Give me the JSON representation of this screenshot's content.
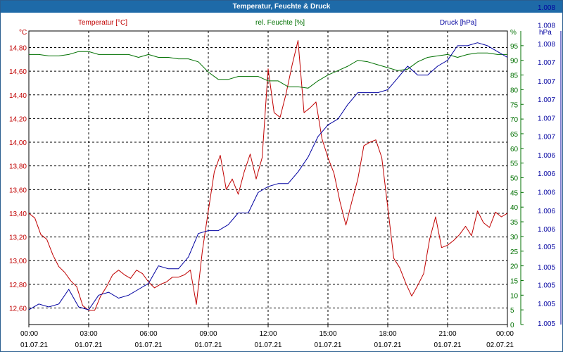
{
  "window": {
    "title": "Temperatur, Feuchte & Druck"
  },
  "chart_data": {
    "type": "line",
    "title": "Temperatur, Feuchte & Druck",
    "x_start_label": "00:00",
    "x_ticks": [
      {
        "time": "00:00",
        "date": "01.07.21"
      },
      {
        "time": "03:00",
        "date": "01.07.21"
      },
      {
        "time": "06:00",
        "date": "01.07.21"
      },
      {
        "time": "09:00",
        "date": "01.07.21"
      },
      {
        "time": "12:00",
        "date": "01.07.21"
      },
      {
        "time": "15:00",
        "date": "01.07.21"
      },
      {
        "time": "18:00",
        "date": "01.07.21"
      },
      {
        "time": "21:00",
        "date": "01.07.21"
      },
      {
        "time": "00:00",
        "date": "02.07.21"
      }
    ],
    "xlim": [
      0,
      24
    ],
    "axes": {
      "left": {
        "title": "Temperatur [°C]",
        "unit": "°C",
        "color": "#c00000",
        "ylim": [
          12.46,
          14.94
        ],
        "ticks": [
          "12,60",
          "12,80",
          "13,00",
          "13,20",
          "13,40",
          "13,60",
          "13,80",
          "14,00",
          "14,20",
          "14,40",
          "14,60",
          "14,80"
        ],
        "tick_values": [
          12.6,
          12.8,
          13.0,
          13.2,
          13.4,
          13.6,
          13.8,
          14.0,
          14.2,
          14.4,
          14.6,
          14.8
        ]
      },
      "right1": {
        "title": "rel. Feuchte [%]",
        "unit": "%",
        "color": "#007000",
        "ylim": [
          0,
          100
        ],
        "ticks": [
          "0",
          "5",
          "10",
          "15",
          "20",
          "25",
          "30",
          "35",
          "40",
          "45",
          "50",
          "55",
          "60",
          "65",
          "70",
          "75",
          "80",
          "85",
          "90",
          "95"
        ],
        "tick_values": [
          0,
          5,
          10,
          15,
          20,
          25,
          30,
          35,
          40,
          45,
          50,
          55,
          60,
          65,
          70,
          75,
          80,
          85,
          90,
          95
        ]
      },
      "right2": {
        "title": "Druck [hPa]",
        "unit": "hPa",
        "color": "#0000a0",
        "ylim": [
          0,
          100
        ],
        "ticks": [
          "1.005",
          "1.005",
          "1.005",
          "1.005",
          "1.005",
          "1.006",
          "1.006",
          "1.006",
          "1.006",
          "1.006",
          "1.007",
          "1.007",
          "1.007",
          "1.007",
          "1.007",
          "1.008",
          "1.008",
          "1.008"
        ],
        "tick_positions": [
          0.5,
          7.2,
          13.6,
          19.7,
          26.6,
          32.6,
          38.9,
          45.2,
          51.5,
          57.8,
          64.1,
          70.4,
          76.7,
          83.0,
          89.4,
          95.7,
          102.0,
          108.2
        ]
      }
    },
    "series": [
      {
        "name": "Temperatur",
        "axis": "left",
        "color": "#c00000",
        "x": [
          0,
          0.3,
          0.6,
          0.9,
          1.2,
          1.5,
          1.8,
          2.1,
          2.4,
          2.7,
          3.0,
          3.3,
          3.6,
          3.9,
          4.2,
          4.5,
          4.8,
          5.1,
          5.4,
          5.7,
          6.0,
          6.3,
          6.6,
          6.9,
          7.2,
          7.5,
          7.8,
          8.1,
          8.4,
          8.7,
          9.0,
          9.3,
          9.6,
          9.9,
          10.2,
          10.5,
          10.8,
          11.1,
          11.4,
          11.7,
          12.0,
          12.3,
          12.6,
          12.9,
          13.2,
          13.5,
          13.8,
          14.1,
          14.4,
          14.7,
          15.0,
          15.3,
          15.6,
          15.9,
          16.2,
          16.5,
          16.8,
          17.1,
          17.4,
          17.7,
          18.0,
          18.3,
          18.6,
          18.9,
          19.2,
          19.5,
          19.8,
          20.1,
          20.4,
          20.7,
          21.0,
          21.3,
          21.6,
          21.9,
          22.2,
          22.5,
          22.8,
          23.1,
          23.4,
          23.7,
          24.0
        ],
        "values": [
          13.4,
          13.36,
          13.22,
          13.18,
          13.05,
          12.95,
          12.9,
          12.83,
          12.78,
          12.62,
          12.58,
          12.58,
          12.7,
          12.78,
          12.88,
          12.92,
          12.88,
          12.85,
          12.92,
          12.89,
          12.82,
          12.77,
          12.8,
          12.82,
          12.86,
          12.86,
          12.88,
          12.92,
          12.63,
          13.08,
          13.42,
          13.75,
          13.89,
          13.6,
          13.69,
          13.56,
          13.75,
          13.9,
          13.69,
          13.87,
          14.62,
          14.25,
          14.21,
          14.41,
          14.65,
          14.86,
          14.25,
          14.29,
          14.34,
          14.03,
          13.87,
          13.74,
          13.5,
          13.3,
          13.5,
          13.69,
          13.97,
          14.0,
          14.02,
          13.87,
          13.45,
          13.02,
          12.94,
          12.81,
          12.7,
          12.79,
          12.89,
          13.18,
          13.37,
          13.11,
          13.13,
          13.17,
          13.22,
          13.29,
          13.21,
          13.42,
          13.32,
          13.28,
          13.41,
          13.37,
          13.4
        ]
      },
      {
        "name": "rel. Feuchte",
        "axis": "right1",
        "color": "#007000",
        "x": [
          0,
          0.5,
          1.0,
          1.5,
          2.0,
          2.5,
          3.0,
          3.5,
          4.0,
          4.5,
          5.0,
          5.5,
          6.0,
          6.5,
          7.0,
          7.5,
          8.0,
          8.5,
          9.0,
          9.5,
          10.0,
          10.5,
          11.0,
          11.5,
          12.0,
          12.5,
          13.0,
          13.5,
          14.0,
          14.5,
          15.0,
          15.5,
          16.0,
          16.5,
          17.0,
          17.5,
          18.0,
          18.5,
          19.0,
          19.5,
          20.0,
          20.5,
          21.0,
          21.5,
          22.0,
          22.5,
          23.0,
          23.5,
          24.0
        ],
        "values": [
          92,
          92,
          91.5,
          91.5,
          92,
          93,
          93,
          92,
          92,
          92,
          92,
          91,
          92,
          91,
          91,
          90.5,
          90.5,
          89.5,
          86,
          83.5,
          83.5,
          84.5,
          84.5,
          84.5,
          83,
          83,
          81,
          81,
          80.5,
          83,
          85,
          86.5,
          88,
          90,
          89.5,
          88.5,
          87.5,
          86.5,
          87,
          89.5,
          91,
          91.5,
          92,
          91,
          92,
          92.5,
          92.5,
          92,
          92
        ]
      },
      {
        "name": "Druck",
        "axis": "right2",
        "color": "#0000a0",
        "x": [
          0,
          0.5,
          1.0,
          1.5,
          2.0,
          2.5,
          3.0,
          3.5,
          4.0,
          4.5,
          5.0,
          5.5,
          6.0,
          6.5,
          7.0,
          7.5,
          8.0,
          8.5,
          9.0,
          9.5,
          10.0,
          10.5,
          11.0,
          11.5,
          12.0,
          12.5,
          13.0,
          13.5,
          14.0,
          14.5,
          15.0,
          15.5,
          16.0,
          16.5,
          17.0,
          17.5,
          18.0,
          18.5,
          19.0,
          19.5,
          20.0,
          20.5,
          21.0,
          21.5,
          22.0,
          22.5,
          23.0,
          23.5,
          24.0
        ],
        "values": [
          5,
          7,
          6,
          7,
          12,
          6,
          5,
          10,
          11,
          9,
          10,
          12,
          14,
          20,
          19,
          19,
          23,
          31,
          32,
          32,
          34,
          38,
          38,
          45,
          47,
          48,
          48,
          52,
          57,
          64,
          68,
          70,
          75,
          79,
          79,
          79,
          80,
          84,
          88,
          85,
          85,
          88,
          90,
          95,
          95,
          96,
          95,
          93,
          91
        ]
      }
    ]
  }
}
